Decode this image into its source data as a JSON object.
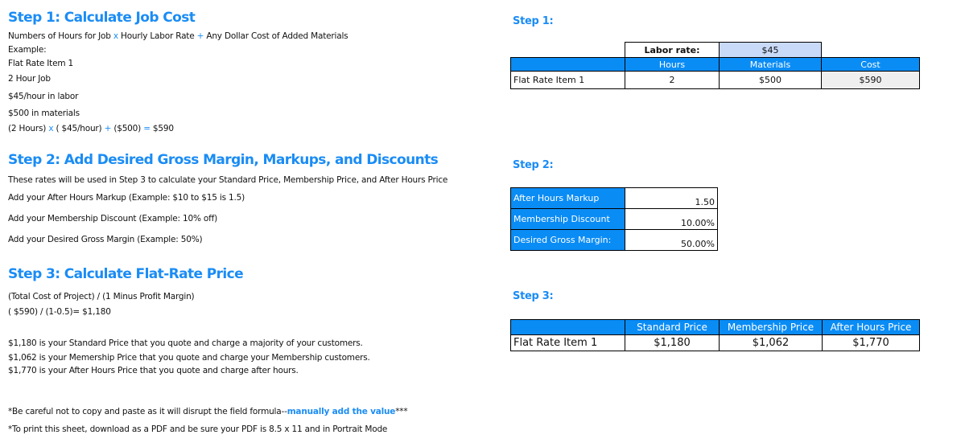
{
  "left": {
    "step1": {
      "title": "Step 1: Calculate Job Cost",
      "formula": [
        "Numbers of Hours for Job ",
        "x",
        " Hourly Labor Rate ",
        "+",
        " Any Dollar Cost of Added Materials"
      ],
      "lines": [
        "Example:",
        "Flat Rate Item 1",
        "2 Hour Job",
        "$45/hour in labor",
        "$500 in materials"
      ],
      "example": [
        "(2 Hours) ",
        "x",
        " ( $45/hour) ",
        "+",
        " ($500) ",
        "=",
        " $590"
      ]
    },
    "step2": {
      "title": "Step 2: Add Desired Gross Margin, Markups, and Discounts",
      "lines": [
        "These rates will be used in Step 3 to calculate your Standard Price, Membership Price, and After Hours Price",
        "Add your After Hours Markup (Example: $10 to $15 is 1.5)",
        "Add your Membership Discount (Example: 10% off)",
        "Add your Desired Gross Margin (Example: 50%)"
      ]
    },
    "step3": {
      "title": "Step 3: Calculate Flat-Rate Price",
      "lines": [
        "(Total Cost of Project) / (1 Minus Profit Margin)",
        "( $590) / (1-0.5)= $1,180",
        "$1,180 is your Standard Price that you quote and charge a majority of your customers.",
        "$1,062 is your Memership Price that you quote and charge your Membership customers.",
        "$1,770 is your After Hours Price that you quote and charge after hours."
      ]
    },
    "notes": {
      "note1_a": "*Be careful not to copy and paste as it will disrupt the field formula--",
      "note1_b": "manually add the value",
      "note1_c": "***",
      "note2": "*To print this sheet, download as a PDF and be sure your PDF is 8.5 x 11 and in Portrait Mode"
    }
  },
  "right": {
    "step1": {
      "label": "Step 1:",
      "labor_label": "Labor rate:",
      "labor_rate": "$45",
      "headers": [
        "",
        "Hours",
        "Materials",
        "Cost"
      ],
      "row": [
        "Flat Rate Item 1",
        "2",
        "$500",
        "$590"
      ]
    },
    "step2": {
      "label": "Step 2:",
      "rows": [
        {
          "label": "After Hours Markup",
          "value": "1.50"
        },
        {
          "label": "Membership Discount",
          "value": "10.00%"
        },
        {
          "label": "Desired Gross Margin:",
          "value": "50.00%"
        }
      ]
    },
    "step3": {
      "label": "Step 3:",
      "headers": [
        "",
        "Standard Price",
        "Membership Price",
        "After Hours Price"
      ],
      "row": [
        "Flat Rate Item 1",
        "$1,180",
        "$1,062",
        "$1,770"
      ]
    }
  },
  "colors": {
    "accent": "#1a8cf5",
    "header_bg": "#0a8cf5",
    "labor_rate_bg": "#c9daf8",
    "cost_bg": "#efefef"
  }
}
